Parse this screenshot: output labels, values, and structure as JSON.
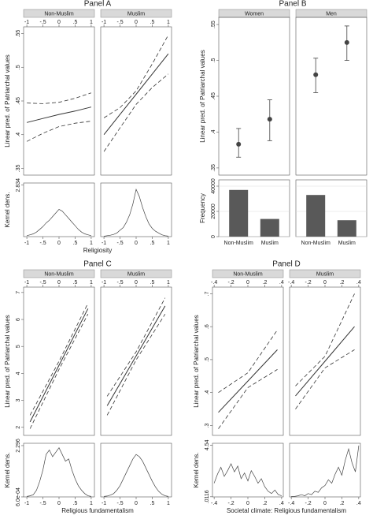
{
  "chart_data": [
    {
      "type": "line",
      "title": "Panel A",
      "ylabel": "Linear pred. of Patriarchal values",
      "xlabel": "Religiosity",
      "xlim": [
        -1.1,
        1.1
      ],
      "xticks": [
        -1,
        {
          "value": -0.5,
          "label": "-.5"
        },
        0,
        {
          "value": 0.5,
          "label": ".5"
        },
        1
      ],
      "ylim": [
        0.34,
        0.56
      ],
      "yticks": [
        {
          "value": 0.35,
          "label": ".35"
        },
        {
          "value": 0.4,
          "label": ".4"
        },
        {
          "value": 0.45,
          "label": ".45"
        },
        {
          "value": 0.5,
          "label": ".5"
        },
        {
          "value": 0.55,
          "label": ".55"
        }
      ],
      "line_color": "#333333",
      "density_ylabel": "Kernel dens.",
      "density_ylim": [
        0,
        2.95
      ],
      "density_yticks": [
        {
          "value": 2.834,
          "label": "2.834"
        }
      ],
      "density_x": [
        -1,
        -0.9,
        -0.8,
        -0.7,
        -0.6,
        -0.5,
        -0.4,
        -0.3,
        -0.2,
        -0.1,
        0,
        0.1,
        0.2,
        0.3,
        0.4,
        0.5,
        0.6,
        0.7,
        0.8,
        0.9,
        1
      ],
      "facets": [
        {
          "name": "Non-Muslim",
          "x": [
            -1,
            -0.5,
            0,
            0.5,
            1
          ],
          "values": [
            0.418,
            0.424,
            0.43,
            0.435,
            0.441
          ],
          "upper": [
            0.447,
            0.446,
            0.448,
            0.454,
            0.462
          ],
          "lower": [
            0.39,
            0.402,
            0.412,
            0.417,
            0.42
          ],
          "density": [
            0.05,
            0.1,
            0.15,
            0.25,
            0.4,
            0.55,
            0.75,
            0.9,
            1.1,
            1.3,
            1.5,
            1.4,
            1.2,
            1.0,
            0.8,
            0.6,
            0.4,
            0.25,
            0.15,
            0.1,
            0.05
          ]
        },
        {
          "name": "Muslim",
          "x": [
            -1,
            -0.5,
            0,
            0.5,
            1
          ],
          "values": [
            0.4,
            0.43,
            0.46,
            0.49,
            0.52
          ],
          "upper": [
            0.425,
            0.44,
            0.465,
            0.505,
            0.548
          ],
          "lower": [
            0.375,
            0.41,
            0.445,
            0.47,
            0.49
          ],
          "density": [
            0.02,
            0.05,
            0.08,
            0.12,
            0.2,
            0.35,
            0.5,
            0.8,
            1.2,
            1.8,
            2.6,
            2.2,
            1.6,
            1.1,
            0.7,
            0.45,
            0.3,
            0.2,
            0.1,
            0.05,
            0.03
          ]
        }
      ]
    },
    {
      "type": "scatter",
      "title": "Panel B",
      "ylabel": "Linear pred. of Patriarchal values",
      "ylim": [
        0.34,
        0.56
      ],
      "yticks": [
        {
          "value": 0.35,
          "label": ".35"
        },
        {
          "value": 0.4,
          "label": ".4"
        },
        {
          "value": 0.45,
          "label": ".45"
        },
        {
          "value": 0.5,
          "label": ".5"
        },
        {
          "value": 0.55,
          "label": ".55"
        }
      ],
      "marker_color": "#444444",
      "bar_color": "#595959",
      "grid": true,
      "bar_ylabel": "Frequency",
      "bar_ylim": [
        0,
        45000
      ],
      "bar_yticks": [
        0,
        20000,
        40000
      ],
      "facets": [
        {
          "name": "Women",
          "categories": [
            "Non-Muslim",
            "Muslim"
          ],
          "values": [
            0.383,
            0.418
          ],
          "ci_low": [
            0.365,
            0.388
          ],
          "ci_high": [
            0.405,
            0.445
          ],
          "frequency": [
            37000,
            14000
          ]
        },
        {
          "name": "Men",
          "categories": [
            "Non-Muslim",
            "Muslim"
          ],
          "values": [
            0.48,
            0.525
          ],
          "ci_low": [
            0.455,
            0.5
          ],
          "ci_high": [
            0.503,
            0.548
          ],
          "frequency": [
            33000,
            13000
          ]
        }
      ]
    },
    {
      "type": "line",
      "title": "Panel C",
      "ylabel": "Linear pred. of Patriarchal values",
      "xlabel": "Religious fundamentalism",
      "xlim": [
        -1.1,
        1.1
      ],
      "xticks": [
        -1,
        {
          "value": -0.5,
          "label": "-.5"
        },
        0,
        {
          "value": 0.5,
          "label": ".5"
        },
        1
      ],
      "ylim": [
        1.7,
        7.2
      ],
      "yticks": [
        2,
        3,
        4,
        5,
        6,
        7
      ],
      "line_color": "#333333",
      "density_ylabel": "Kernel dens.",
      "density_ylim": [
        0,
        2.4
      ],
      "density_yticks": [
        {
          "value": 0.0006,
          "label": "6.0e-04"
        },
        2.296
      ],
      "density_x": [
        -1,
        -0.9,
        -0.8,
        -0.7,
        -0.6,
        -0.5,
        -0.4,
        -0.3,
        -0.2,
        -0.1,
        0,
        0.1,
        0.2,
        0.3,
        0.4,
        0.5,
        0.6,
        0.7,
        0.8,
        0.9,
        1
      ],
      "facets": [
        {
          "name": "Non-Muslim",
          "x": [
            -0.9,
            0,
            0.9
          ],
          "values": [
            2.2,
            4.3,
            6.4
          ],
          "upper": [
            2.45,
            4.45,
            6.6
          ],
          "lower": [
            1.95,
            4.15,
            6.2
          ],
          "density": [
            0.02,
            0.05,
            0.1,
            0.3,
            0.7,
            1.2,
            1.9,
            2.1,
            1.8,
            2.0,
            2.2,
            1.9,
            1.6,
            1.7,
            1.2,
            0.8,
            0.5,
            0.3,
            0.15,
            0.05,
            0.02
          ]
        },
        {
          "name": "Muslim",
          "x": [
            -0.9,
            0,
            0.9
          ],
          "values": [
            2.8,
            4.65,
            6.5
          ],
          "upper": [
            3.15,
            4.8,
            6.8
          ],
          "lower": [
            2.45,
            4.5,
            6.2
          ],
          "density": [
            0.02,
            0.04,
            0.08,
            0.15,
            0.3,
            0.5,
            0.8,
            1.1,
            1.4,
            1.7,
            1.9,
            1.8,
            1.6,
            1.3,
            1.0,
            0.7,
            0.45,
            0.25,
            0.12,
            0.05,
            0.02
          ]
        }
      ]
    },
    {
      "type": "line",
      "title": "Panel D",
      "ylabel": "Linear pred. of Patriarchal values",
      "xlabel": "Societal climate: Religious fundamentalism",
      "xlim": [
        -0.42,
        0.42
      ],
      "xticks": [
        {
          "value": -0.4,
          "label": "-.4"
        },
        {
          "value": -0.2,
          "label": "-.2"
        },
        0,
        {
          "value": 0.2,
          "label": ".2"
        },
        {
          "value": 0.4,
          "label": ".4"
        }
      ],
      "ylim": [
        0.27,
        0.72
      ],
      "yticks": [
        {
          "value": 0.3,
          "label": ".3"
        },
        {
          "value": 0.4,
          "label": ".4"
        },
        {
          "value": 0.5,
          "label": ".5"
        },
        {
          "value": 0.6,
          "label": ".6"
        },
        {
          "value": 0.7,
          "label": ".7"
        }
      ],
      "line_color": "#333333",
      "density_ylabel": "Kernel dens.",
      "density_ylim": [
        0,
        4.7
      ],
      "density_yticks": [
        {
          "value": 0.0116,
          "label": ".0116"
        },
        {
          "value": 4.54,
          "label": "4.54"
        }
      ],
      "density_x": [
        -0.4,
        -0.36,
        -0.32,
        -0.28,
        -0.24,
        -0.2,
        -0.16,
        -0.12,
        -0.08,
        -0.04,
        0,
        0.04,
        0.08,
        0.12,
        0.16,
        0.2,
        0.24,
        0.28,
        0.32,
        0.36,
        0.4
      ],
      "facets": [
        {
          "name": "Non-Muslim",
          "x": [
            -0.35,
            0,
            0.35
          ],
          "values": [
            0.34,
            0.435,
            0.53
          ],
          "upper": [
            0.4,
            0.46,
            0.59
          ],
          "lower": [
            0.29,
            0.415,
            0.47
          ],
          "density": [
            1.2,
            2.0,
            2.6,
            1.8,
            2.3,
            2.9,
            2.2,
            2.7,
            1.6,
            2.1,
            1.4,
            2.3,
            1.8,
            1.2,
            1.6,
            0.9,
            0.5,
            0.3,
            0.6,
            0.2,
            0.1
          ]
        },
        {
          "name": "Muslim",
          "x": [
            -0.35,
            0,
            0.35
          ],
          "values": [
            0.39,
            0.495,
            0.6
          ],
          "upper": [
            0.42,
            0.51,
            0.7
          ],
          "lower": [
            0.35,
            0.475,
            0.53
          ],
          "density": [
            0.05,
            0.05,
            0.1,
            0.2,
            0.1,
            0.3,
            0.2,
            0.5,
            0.4,
            0.8,
            1.0,
            1.5,
            1.2,
            2.0,
            2.6,
            1.9,
            3.2,
            4.2,
            3.0,
            2.2,
            4.5
          ]
        }
      ]
    }
  ]
}
